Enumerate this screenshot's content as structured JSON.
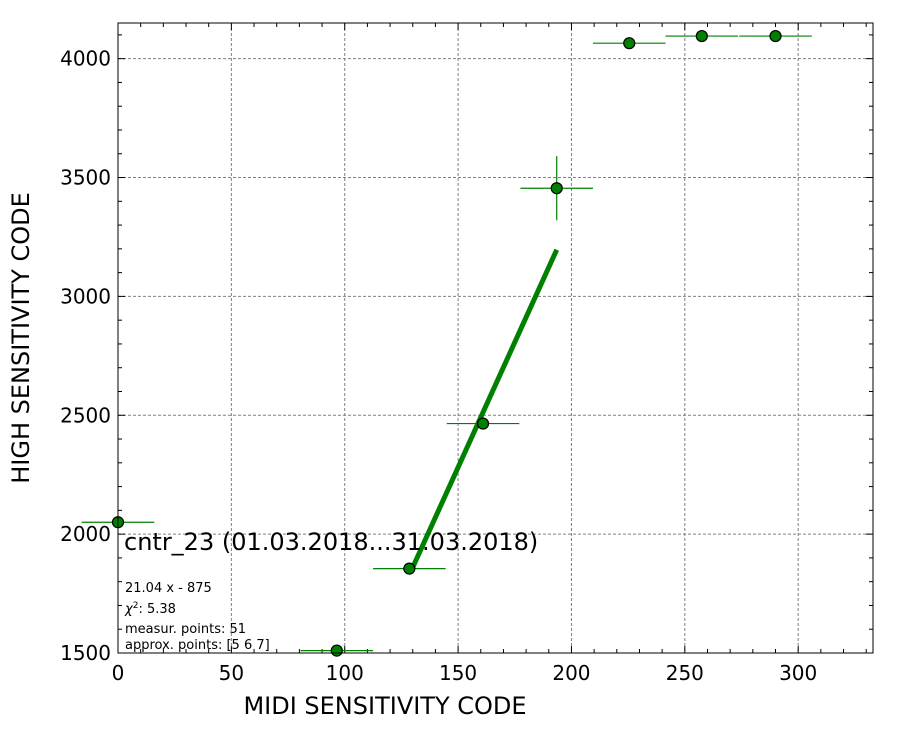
{
  "chart_data": {
    "type": "scatter",
    "title": "",
    "xlabel": "MIDI SENSITIVITY CODE",
    "ylabel": "HIGH SENSITIVITY CODE",
    "xlim": [
      0,
      333
    ],
    "ylim": [
      1500,
      4150
    ],
    "xticks": [
      0,
      50,
      100,
      150,
      200,
      250,
      300
    ],
    "yticks": [
      1500,
      2000,
      2500,
      3000,
      3500,
      4000
    ],
    "grid": true,
    "colors": {
      "points": "#008000",
      "errorbars": "#008000",
      "fit": "#008000",
      "grid": "#808080"
    },
    "points": [
      {
        "x": 0,
        "y": 2050,
        "xerr": 16,
        "yerr": 0
      },
      {
        "x": 96.5,
        "y": 1510,
        "xerr": 16,
        "yerr": 0
      },
      {
        "x": 128.5,
        "y": 1855,
        "xerr": 16,
        "yerr": 15
      },
      {
        "x": 161,
        "y": 2465,
        "xerr": 16,
        "yerr": 18
      },
      {
        "x": 193.5,
        "y": 3455,
        "xerr": 16,
        "yerr": 135
      },
      {
        "x": 225.5,
        "y": 4065,
        "xerr": 16,
        "yerr": 0
      },
      {
        "x": 257.5,
        "y": 4095,
        "xerr": 16,
        "yerr": 0
      },
      {
        "x": 290,
        "y": 4095,
        "xerr": 16,
        "yerr": 0
      }
    ],
    "fit": {
      "slope": 21.04,
      "intercept": -875,
      "x_start": 129.5,
      "x_end": 193.5
    },
    "annotations": {
      "main": "cntr_23 (01.03.2018...31.03.2018)",
      "fit_formula": "21.04 x - 875",
      "chi2_value": "5.38",
      "measur_points": "measur. points: 51",
      "approx_points": "approx. points: [5 6 7]"
    }
  }
}
